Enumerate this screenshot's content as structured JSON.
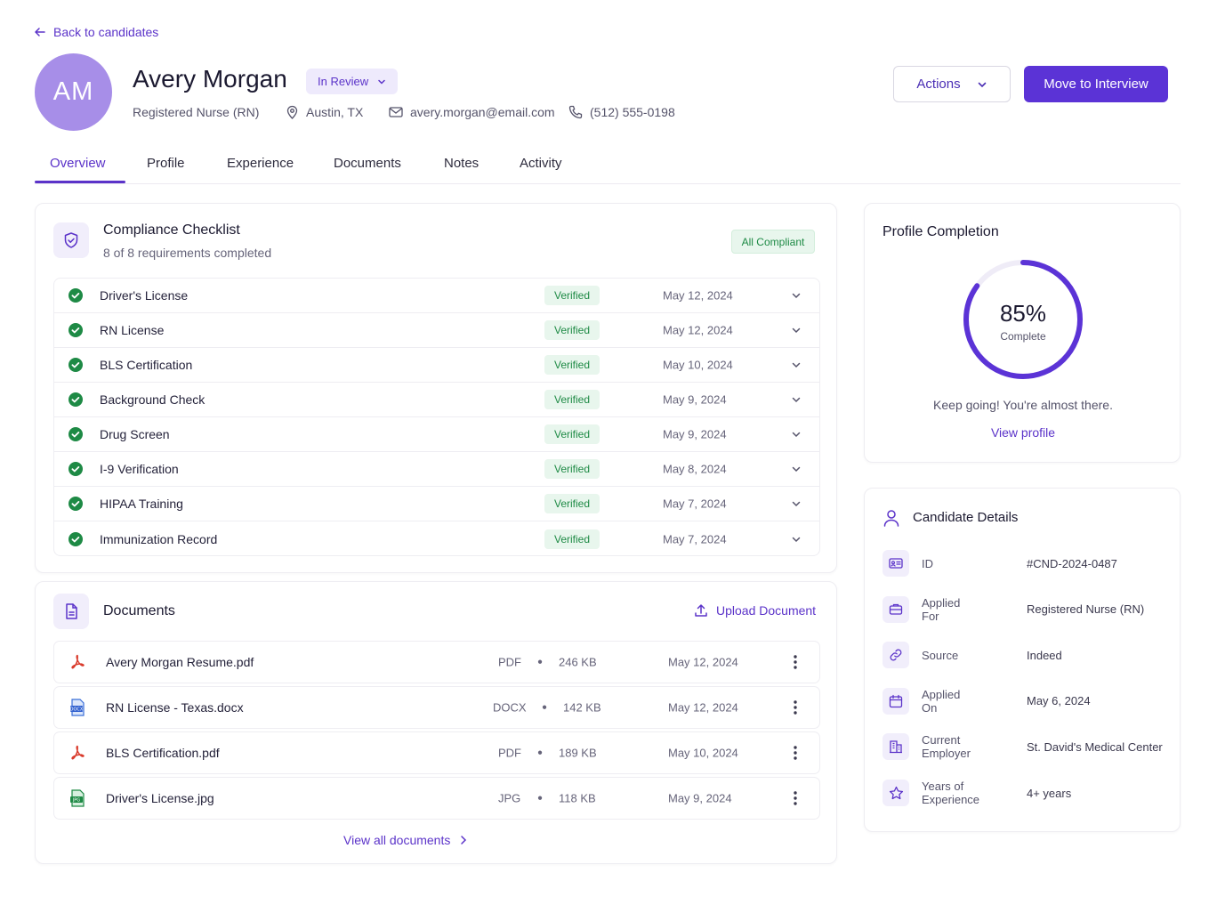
{
  "nav": {
    "back_label": "Back to candidates"
  },
  "candidate": {
    "initials": "AM",
    "name": "Avery Morgan",
    "status": "In Review",
    "role": "Registered Nurse (RN)",
    "location": "Austin, TX",
    "email": "avery.morgan@email.com",
    "phone": "(512) 555-0198"
  },
  "header_actions": {
    "actions_label": "Actions",
    "primary_label": "Move to Interview"
  },
  "tabs": [
    {
      "label": "Overview",
      "active": true
    },
    {
      "label": "Profile"
    },
    {
      "label": "Experience"
    },
    {
      "label": "Documents"
    },
    {
      "label": "Notes"
    },
    {
      "label": "Activity"
    }
  ],
  "compliance": {
    "title": "Compliance Checklist",
    "subtitle": "8 of 8 requirements completed",
    "badge": "All Compliant",
    "items": [
      {
        "name": "Driver's License",
        "status": "Verified",
        "date": "May 12, 2024"
      },
      {
        "name": "RN License",
        "status": "Verified",
        "date": "May 12, 2024"
      },
      {
        "name": "BLS Certification",
        "status": "Verified",
        "date": "May 10, 2024"
      },
      {
        "name": "Background Check",
        "status": "Verified",
        "date": "May 9, 2024"
      },
      {
        "name": "Drug Screen",
        "status": "Verified",
        "date": "May 9, 2024"
      },
      {
        "name": "I-9 Verification",
        "status": "Verified",
        "date": "May 8, 2024"
      },
      {
        "name": "HIPAA Training",
        "status": "Verified",
        "date": "May 7, 2024"
      },
      {
        "name": "Immunization Record",
        "status": "Verified",
        "date": "May 7, 2024"
      }
    ]
  },
  "documents": {
    "title": "Documents",
    "upload_label": "Upload Document",
    "view_all_label": "View all documents",
    "items": [
      {
        "name": "Avery Morgan Resume.pdf",
        "type": "PDF",
        "size": "246 KB",
        "date": "May 12, 2024",
        "icon": "pdf-icon"
      },
      {
        "name": "RN License - Texas.docx",
        "type": "DOCX",
        "size": "142 KB",
        "date": "May 12, 2024",
        "icon": "docx-icon"
      },
      {
        "name": "BLS Certification.pdf",
        "type": "PDF",
        "size": "189 KB",
        "date": "May 10, 2024",
        "icon": "pdf-icon"
      },
      {
        "name": "Driver's License.jpg",
        "type": "JPG",
        "size": "118 KB",
        "date": "May 9, 2024",
        "icon": "jpg-icon"
      }
    ]
  },
  "profile_completion": {
    "title": "Profile Completion",
    "percent_label": "85%",
    "percent": 85,
    "complete_label": "Complete",
    "message": "Keep going! You're almost there.",
    "link_label": "View profile"
  },
  "details": {
    "title": "Candidate Details",
    "rows": [
      {
        "label": "ID",
        "value": "#CND-2024-0487",
        "icon": "id-card-icon"
      },
      {
        "label": "Applied For",
        "value": "Registered Nurse (RN)",
        "icon": "briefcase-icon"
      },
      {
        "label": "Source",
        "value": "Indeed",
        "icon": "link-icon"
      },
      {
        "label": "Applied On",
        "value": "May 6, 2024",
        "icon": "calendar-icon"
      },
      {
        "label": "Current Employer",
        "value": "St. David's Medical Center",
        "icon": "building-icon"
      },
      {
        "label": "Years of Experience",
        "value": "4+ years",
        "icon": "star-icon"
      }
    ]
  },
  "colors": {
    "accent": "#5b33c9",
    "primary_button": "#5b33d6",
    "success": "#1e8a45",
    "avatar": "#a78ee8"
  }
}
